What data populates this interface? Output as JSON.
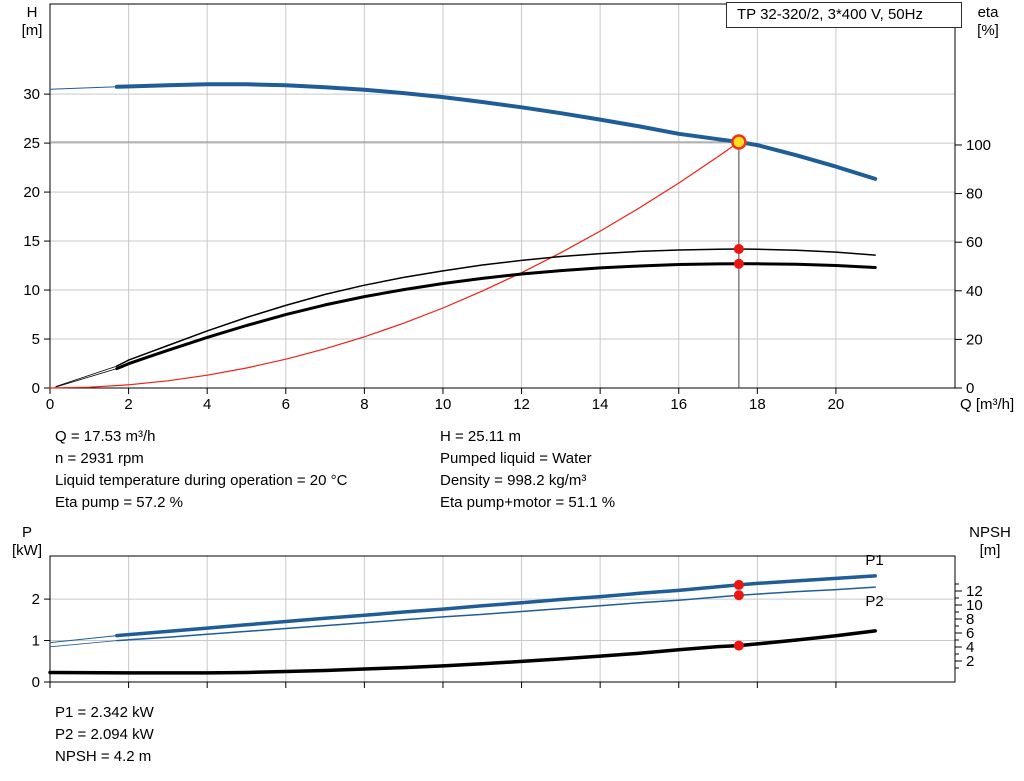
{
  "title_box": "TP 32-320/2, 3*400 V, 50Hz",
  "info_top": {
    "left": [
      "Q = 17.53 m³/h",
      "n = 2931 rpm",
      "Liquid temperature during operation = 20 °C",
      "Eta pump = 57.2 %"
    ],
    "right": [
      "H = 25.11 m",
      "Pumped liquid = Water",
      "Density = 998.2 kg/m³",
      "Eta pump+motor = 51.1 %"
    ]
  },
  "info_bottom": [
    "P1 = 2.342 kW",
    "P2 = 2.094 kW",
    "NPSH = 4.2 m"
  ],
  "colors": {
    "curve_blue": "#1f5d99",
    "curve_red": "#ee2015",
    "curve_black": "#000000",
    "grid": "#c9c9c9",
    "frame": "#000000",
    "duty_yellow": "#ffe01a",
    "duty_ring_red": "#ee3322",
    "dot_red": "#ee1410",
    "ref_gray": "#8c8c8c",
    "ref_dark": "#444444"
  },
  "chart_data": [
    {
      "id": "hq",
      "type": "line",
      "xlabel": "Q [m³/h]",
      "ylabel_left_lines": [
        "H",
        "[m]"
      ],
      "ylabel_right_lines": [
        "eta",
        "[%]"
      ],
      "x_range": [
        0,
        23.03
      ],
      "x_ticks": [
        0,
        2,
        4,
        6,
        8,
        10,
        12,
        14,
        16,
        18,
        20
      ],
      "show_x_tick_labels": true,
      "yl_range": [
        0,
        39.2
      ],
      "yl_ticks": [
        0,
        5,
        10,
        15,
        20,
        25,
        30
      ],
      "yr_range": [
        0,
        158
      ],
      "yr_ticks": [
        0,
        20,
        40,
        60,
        80,
        100
      ],
      "yr_minor_ticks": [],
      "ref_lines": [
        {
          "dir": "h",
          "axis": "left",
          "at": 25.11,
          "x1": 0,
          "x2": 17.53,
          "color": "#8c8c8c",
          "w": 1
        },
        {
          "dir": "v",
          "axis": "left",
          "at": 17.53,
          "y1": 0,
          "y2": 25.11,
          "color": "#444444",
          "w": 1
        }
      ],
      "series": [
        {
          "name": "system-curve",
          "axis": "left",
          "color": "#ee2015",
          "w": 1.2,
          "points": [
            [
              0,
              0
            ],
            [
              1,
              0.08
            ],
            [
              2,
              0.33
            ],
            [
              3,
              0.74
            ],
            [
              4,
              1.31
            ],
            [
              5,
              2.04
            ],
            [
              6,
              2.94
            ],
            [
              7,
              4.0
            ],
            [
              8,
              5.23
            ],
            [
              9,
              6.62
            ],
            [
              10,
              8.17
            ],
            [
              11,
              9.89
            ],
            [
              12,
              11.77
            ],
            [
              13,
              13.81
            ],
            [
              14,
              16.02
            ],
            [
              15,
              18.39
            ],
            [
              16,
              20.92
            ],
            [
              17,
              23.62
            ],
            [
              17.53,
              25.11
            ]
          ]
        },
        {
          "name": "eta-pump-leader",
          "axis": "right",
          "color": "#000000",
          "w": 0.8,
          "points": [
            [
              0.15,
              0.6
            ],
            [
              1.7,
              9
            ]
          ]
        },
        {
          "name": "eta-pump",
          "axis": "right",
          "color": "#000000",
          "w": 1.5,
          "points": [
            [
              1.7,
              9
            ],
            [
              2,
              11.5
            ],
            [
              2.5,
              14.5
            ],
            [
              3,
              17.5
            ],
            [
              4,
              23.5
            ],
            [
              5,
              29
            ],
            [
              6,
              34
            ],
            [
              7,
              38.5
            ],
            [
              8,
              42.3
            ],
            [
              9,
              45.5
            ],
            [
              10,
              48.2
            ],
            [
              11,
              50.6
            ],
            [
              12,
              52.5
            ],
            [
              13,
              54.1
            ],
            [
              14,
              55.3
            ],
            [
              15,
              56.2
            ],
            [
              16,
              56.8
            ],
            [
              17,
              57.1
            ],
            [
              17.53,
              57.2
            ],
            [
              18,
              57.1
            ],
            [
              19,
              56.7
            ],
            [
              20,
              55.9
            ],
            [
              21,
              54.7
            ]
          ]
        },
        {
          "name": "eta-pump-motor-leader",
          "axis": "right",
          "color": "#000000",
          "w": 0.8,
          "points": [
            [
              0.15,
              0.4
            ],
            [
              1.7,
              8
            ]
          ]
        },
        {
          "name": "eta-pump-motor",
          "axis": "right",
          "color": "#000000",
          "w": 3,
          "points": [
            [
              1.7,
              8
            ],
            [
              2,
              10
            ],
            [
              2.5,
              12.8
            ],
            [
              3,
              15.5
            ],
            [
              4,
              20.8
            ],
            [
              5,
              25.7
            ],
            [
              6,
              30.2
            ],
            [
              7,
              34.2
            ],
            [
              8,
              37.6
            ],
            [
              9,
              40.5
            ],
            [
              10,
              43
            ],
            [
              11,
              45.1
            ],
            [
              12,
              46.9
            ],
            [
              13,
              48.3
            ],
            [
              14,
              49.4
            ],
            [
              15,
              50.2
            ],
            [
              16,
              50.8
            ],
            [
              17,
              51.05
            ],
            [
              17.53,
              51.1
            ],
            [
              18,
              51.1
            ],
            [
              19,
              50.9
            ],
            [
              20,
              50.4
            ],
            [
              21,
              49.6
            ]
          ]
        },
        {
          "name": "hq-leader",
          "axis": "left",
          "color": "#1f5d99",
          "w": 1,
          "points": [
            [
              0,
              30.5
            ],
            [
              1.7,
              30.75
            ]
          ]
        },
        {
          "name": "hq-curve",
          "axis": "left",
          "color": "#1f5d99",
          "w": 4,
          "points": [
            [
              1.7,
              30.75
            ],
            [
              3,
              30.9
            ],
            [
              4,
              31.0
            ],
            [
              5,
              31.0
            ],
            [
              6,
              30.9
            ],
            [
              7,
              30.7
            ],
            [
              8,
              30.45
            ],
            [
              9,
              30.1
            ],
            [
              10,
              29.7
            ],
            [
              11,
              29.2
            ],
            [
              12,
              28.65
            ],
            [
              13,
              28.05
            ],
            [
              14,
              27.4
            ],
            [
              15,
              26.7
            ],
            [
              16,
              25.95
            ],
            [
              17,
              25.4
            ],
            [
              17.53,
              25.11
            ],
            [
              18,
              24.8
            ],
            [
              19,
              23.75
            ],
            [
              20,
              22.6
            ],
            [
              21,
              21.35
            ]
          ]
        }
      ],
      "markers": [
        {
          "name": "duty-point",
          "x": 17.53,
          "axis": "left",
          "y": 25.11,
          "r": 6.5,
          "fill": "#ffe01a",
          "stroke": "#ee3322",
          "sw": 2.5
        },
        {
          "name": "eta-pump-dot",
          "x": 17.53,
          "axis": "right",
          "y": 57.2,
          "r": 5,
          "fill": "#ee1410"
        },
        {
          "name": "eta-pump-motor-dot",
          "x": 17.53,
          "axis": "right",
          "y": 51.1,
          "r": 5,
          "fill": "#ee1410"
        }
      ],
      "annotations": []
    },
    {
      "id": "pq",
      "type": "line",
      "xlabel": "",
      "ylabel_left_lines": [
        "P",
        "[kW]"
      ],
      "ylabel_right_lines": [
        "NPSH",
        "[m]"
      ],
      "x_range": [
        0,
        23.03
      ],
      "x_ticks": [
        0,
        2,
        4,
        6,
        8,
        10,
        12,
        14,
        16,
        18,
        20
      ],
      "show_x_tick_labels": false,
      "yl_range": [
        0,
        3.04
      ],
      "yl_ticks": [
        0,
        1,
        2
      ],
      "yr_range": [
        -1,
        17
      ],
      "yr_ticks": [
        2,
        4,
        6,
        8,
        10,
        12
      ],
      "yr_minor_ticks": [
        1,
        3,
        5,
        7,
        9,
        11,
        13
      ],
      "ref_lines": [],
      "series": [
        {
          "name": "p1-leader",
          "axis": "left",
          "color": "#1f5d99",
          "w": 1,
          "points": [
            [
              0,
              0.95
            ],
            [
              1.7,
              1.12
            ]
          ]
        },
        {
          "name": "p1-curve",
          "axis": "left",
          "color": "#1f5d99",
          "w": 3.5,
          "points": [
            [
              1.7,
              1.12
            ],
            [
              3,
              1.22
            ],
            [
              4,
              1.3
            ],
            [
              5,
              1.38
            ],
            [
              6,
              1.46
            ],
            [
              7,
              1.54
            ],
            [
              8,
              1.61
            ],
            [
              9,
              1.69
            ],
            [
              10,
              1.76
            ],
            [
              11,
              1.84
            ],
            [
              12,
              1.91
            ],
            [
              13,
              1.99
            ],
            [
              14,
              2.06
            ],
            [
              15,
              2.14
            ],
            [
              16,
              2.21
            ],
            [
              17,
              2.3
            ],
            [
              17.53,
              2.342
            ],
            [
              18,
              2.38
            ],
            [
              19,
              2.44
            ],
            [
              20,
              2.5
            ],
            [
              21,
              2.56
            ]
          ]
        },
        {
          "name": "p2-leader",
          "axis": "left",
          "color": "#1f5d99",
          "w": 0.8,
          "points": [
            [
              0,
              0.85
            ],
            [
              1.7,
              1.0
            ]
          ]
        },
        {
          "name": "p2-curve",
          "axis": "left",
          "color": "#1f5d99",
          "w": 1.5,
          "points": [
            [
              1.7,
              1.0
            ],
            [
              3,
              1.08
            ],
            [
              4,
              1.15
            ],
            [
              5,
              1.22
            ],
            [
              6,
              1.29
            ],
            [
              7,
              1.36
            ],
            [
              8,
              1.43
            ],
            [
              9,
              1.5
            ],
            [
              10,
              1.57
            ],
            [
              11,
              1.63
            ],
            [
              12,
              1.7
            ],
            [
              13,
              1.77
            ],
            [
              14,
              1.84
            ],
            [
              15,
              1.91
            ],
            [
              16,
              1.97
            ],
            [
              17,
              2.05
            ],
            [
              17.53,
              2.094
            ],
            [
              18,
              2.12
            ],
            [
              19,
              2.18
            ],
            [
              20,
              2.23
            ],
            [
              21,
              2.29
            ]
          ]
        },
        {
          "name": "npsh-curve",
          "axis": "right",
          "color": "#000000",
          "w": 3.5,
          "points": [
            [
              0,
              0.35
            ],
            [
              2,
              0.3
            ],
            [
              4,
              0.3
            ],
            [
              5,
              0.35
            ],
            [
              6,
              0.5
            ],
            [
              7,
              0.65
            ],
            [
              8,
              0.85
            ],
            [
              9,
              1.05
            ],
            [
              10,
              1.3
            ],
            [
              11,
              1.6
            ],
            [
              12,
              1.95
            ],
            [
              13,
              2.3
            ],
            [
              14,
              2.7
            ],
            [
              15,
              3.1
            ],
            [
              16,
              3.6
            ],
            [
              17,
              4.05
            ],
            [
              17.53,
              4.2
            ],
            [
              18,
              4.45
            ],
            [
              19,
              5.0
            ],
            [
              20,
              5.6
            ],
            [
              21,
              6.3
            ]
          ]
        }
      ],
      "markers": [
        {
          "name": "p1-dot",
          "x": 17.53,
          "axis": "left",
          "y": 2.342,
          "r": 5,
          "fill": "#ee1410"
        },
        {
          "name": "p2-dot",
          "x": 17.53,
          "axis": "left",
          "y": 2.094,
          "r": 5,
          "fill": "#ee1410"
        },
        {
          "name": "npsh-dot",
          "x": 17.53,
          "axis": "right",
          "y": 4.2,
          "r": 5,
          "fill": "#ee1410"
        }
      ],
      "annotations": [
        {
          "text": "P1",
          "x": 20.75,
          "y": 2.82,
          "axis": "left",
          "color": "#1f5d99"
        },
        {
          "text": "P2",
          "x": 20.75,
          "y": 1.83,
          "axis": "left",
          "color": "#1f5d99"
        }
      ]
    }
  ]
}
